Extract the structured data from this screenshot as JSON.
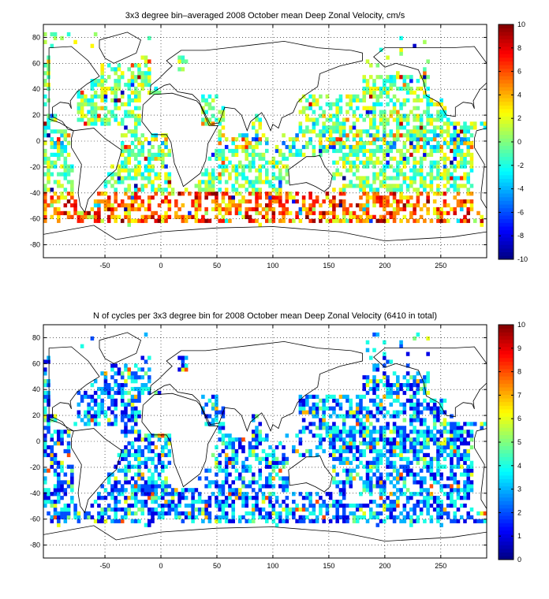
{
  "chart_data": [
    {
      "type": "heatmap",
      "title": "3x3 degree bin–averaged 2008 October mean Deep Zonal Velocity, cm/s",
      "xlabel": "",
      "ylabel": "",
      "xlim": [
        -105,
        291
      ],
      "ylim": [
        -90,
        90
      ],
      "xticks": [
        -50,
        0,
        50,
        100,
        150,
        200,
        250
      ],
      "yticks": [
        80,
        60,
        40,
        20,
        0,
        -20,
        -40,
        -60,
        -80
      ],
      "bin_size_deg": 3,
      "colorbar": {
        "min": -10,
        "max": 10,
        "ticks": [
          10,
          8,
          6,
          4,
          2,
          0,
          -2,
          -4,
          -6,
          -8,
          -10
        ],
        "colormap": "jet"
      },
      "grid": "dotted",
      "map": "world coastlines",
      "value_field": "velocity"
    },
    {
      "type": "heatmap",
      "title": "N of cycles per 3x3 degree bin for 2008 October mean Deep Zonal Velocity (6410 in total)",
      "xlabel": "",
      "ylabel": "",
      "xlim": [
        -105,
        291
      ],
      "ylim": [
        -90,
        90
      ],
      "xticks": [
        -50,
        0,
        50,
        100,
        150,
        200,
        250
      ],
      "yticks": [
        80,
        60,
        40,
        20,
        0,
        -20,
        -40,
        -60,
        -80
      ],
      "bin_size_deg": 3,
      "colorbar": {
        "min": 0,
        "max": 10,
        "ticks": [
          10,
          9,
          8,
          7,
          6,
          5,
          4,
          3,
          2,
          1,
          0
        ],
        "colormap": "jet"
      },
      "grid": "dotted",
      "map": "world coastlines",
      "value_field": "count"
    }
  ],
  "colors": {
    "axis": "#000000",
    "grid": "#000000",
    "coast": "#000000"
  }
}
